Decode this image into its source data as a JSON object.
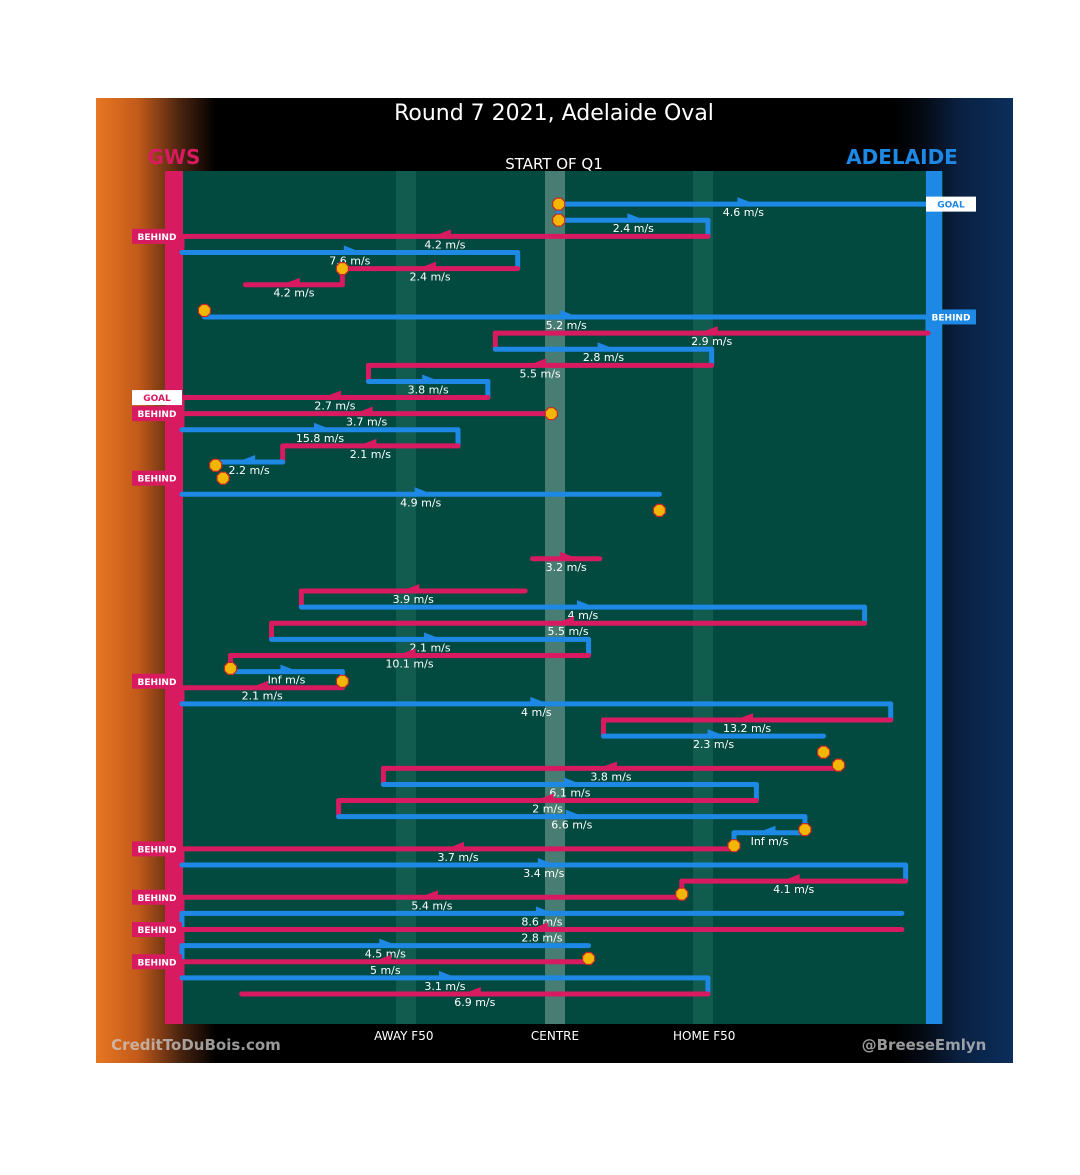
{
  "title": "Round 7 2021, Adelaide Oval",
  "subtitle": "START OF Q1",
  "teams": {
    "left": "GWS",
    "right": "ADELAIDE"
  },
  "colors": {
    "gws": "#d81b60",
    "adelaide": "#1e88e5",
    "field": "#02493f",
    "ball": "#f2b705",
    "white": "#ffffff"
  },
  "footer": {
    "left": "CreditToDuBois.com",
    "right": "@BreeseEmlyn"
  },
  "chart_data": {
    "type": "possession-chain",
    "title": "Round 7 2021, Adelaide Oval",
    "subtitle": "START OF Q1",
    "x_axis": {
      "range": [
        0,
        100
      ],
      "ticks": [
        {
          "pos": 30,
          "label": "AWAY F50"
        },
        {
          "pos": 50,
          "label": "CENTRE"
        },
        {
          "pos": 70,
          "label": "HOME F50"
        }
      ]
    },
    "y_axis": {
      "range": [
        0,
        50
      ]
    },
    "markers_order": [
      "left_wall",
      "right_wall"
    ],
    "segments": [
      {
        "team": "A",
        "y": 1.0,
        "x1": 50.5,
        "x2": 100,
        "speed": "4.6 m/s",
        "dir": 1
      },
      {
        "team": "A",
        "y": 2.0,
        "x1": 50.5,
        "x2": 70.5,
        "speed": "2.4 m/s",
        "dir": 1
      },
      {
        "team": "G",
        "y": 3.0,
        "x1": 0,
        "x2": 70.5,
        "speed": "4.2 m/s",
        "dir": -1
      },
      {
        "team": "A",
        "y": 4.0,
        "x1": 0,
        "x2": 45,
        "speed": "7.6 m/s",
        "dir": 1
      },
      {
        "team": "G",
        "y": 5.0,
        "x1": 21.5,
        "x2": 45,
        "speed": "2.4 m/s",
        "dir": -1
      },
      {
        "team": "G",
        "y": 6.0,
        "x1": 8.5,
        "x2": 21.5,
        "speed": "4.2 m/s",
        "dir": -1
      },
      {
        "team": "A",
        "y": 8.0,
        "x1": 3,
        "x2": 100,
        "speed": "5.2 m/s",
        "dir": 1
      },
      {
        "team": "G",
        "y": 9.0,
        "x1": 42,
        "x2": 100,
        "speed": "2.9 m/s",
        "dir": -1
      },
      {
        "team": "A",
        "y": 10.0,
        "x1": 42,
        "x2": 71,
        "speed": "2.8 m/s",
        "dir": 1
      },
      {
        "team": "G",
        "y": 11.0,
        "x1": 25,
        "x2": 71,
        "speed": "5.5 m/s",
        "dir": -1
      },
      {
        "team": "A",
        "y": 12.0,
        "x1": 25,
        "x2": 41,
        "speed": "3.8 m/s",
        "dir": 1
      },
      {
        "team": "G",
        "y": 13.0,
        "x1": 0,
        "x2": 41,
        "speed": "2.7 m/s",
        "dir": -1
      },
      {
        "team": "G",
        "y": 14.0,
        "x1": 0,
        "x2": 49.5,
        "speed": "3.7 m/s",
        "dir": -1
      },
      {
        "team": "A",
        "y": 15.0,
        "x1": 0,
        "x2": 37,
        "speed": "15.8 m/s",
        "dir": 1
      },
      {
        "team": "G",
        "y": 16.0,
        "x1": 13.5,
        "x2": 37,
        "speed": "2.1 m/s",
        "dir": -1
      },
      {
        "team": "A",
        "y": 17.0,
        "x1": 4.5,
        "x2": 13.5,
        "speed": "2.2 m/s",
        "dir": -1
      },
      {
        "team": "A",
        "y": 19.0,
        "x1": 0,
        "x2": 64,
        "speed": "4.9 m/s",
        "dir": 1
      },
      {
        "team": "G",
        "y": 23.0,
        "x1": 47,
        "x2": 56,
        "speed": "3.2 m/s",
        "dir": 1
      },
      {
        "team": "G",
        "y": 25.0,
        "x1": 16,
        "x2": 46,
        "speed": "3.9 m/s",
        "dir": -1
      },
      {
        "team": "A",
        "y": 26.0,
        "x1": 16,
        "x2": 91.5,
        "speed": "4 m/s",
        "dir": 1
      },
      {
        "team": "G",
        "y": 27.0,
        "x1": 12,
        "x2": 91.5,
        "speed": "5.5 m/s",
        "dir": -1
      },
      {
        "team": "A",
        "y": 28.0,
        "x1": 12,
        "x2": 54.5,
        "speed": "2.1 m/s",
        "dir": 1
      },
      {
        "team": "G",
        "y": 29.0,
        "x1": 6.5,
        "x2": 54.5,
        "speed": "10.1 m/s",
        "dir": -1
      },
      {
        "team": "A",
        "y": 30.0,
        "x1": 6.5,
        "x2": 21.5,
        "speed": "Inf m/s",
        "dir": 1
      },
      {
        "team": "G",
        "y": 31.0,
        "x1": 0,
        "x2": 21.5,
        "speed": "2.1 m/s",
        "dir": -1
      },
      {
        "team": "A",
        "y": 32.0,
        "x1": 0,
        "x2": 95,
        "speed": "4 m/s",
        "dir": 1
      },
      {
        "team": "G",
        "y": 33.0,
        "x1": 56.5,
        "x2": 95,
        "speed": "13.2 m/s",
        "dir": -1
      },
      {
        "team": "A",
        "y": 34.0,
        "x1": 56.5,
        "x2": 86,
        "speed": "2.3 m/s",
        "dir": 1
      },
      {
        "team": "G",
        "y": 36.0,
        "x1": 27,
        "x2": 88,
        "speed": "3.8 m/s",
        "dir": -1
      },
      {
        "team": "A",
        "y": 37.0,
        "x1": 27,
        "x2": 77,
        "speed": "6.1 m/s",
        "dir": 1
      },
      {
        "team": "G",
        "y": 38.0,
        "x1": 21,
        "x2": 77,
        "speed": "2 m/s",
        "dir": -1
      },
      {
        "team": "A",
        "y": 39.0,
        "x1": 21,
        "x2": 83.5,
        "speed": "6.6 m/s",
        "dir": 1
      },
      {
        "team": "A",
        "y": 40.0,
        "x1": 74,
        "x2": 83.5,
        "speed": "Inf m/s",
        "dir": -1
      },
      {
        "team": "G",
        "y": 41.0,
        "x1": 0,
        "x2": 74,
        "speed": "3.7 m/s",
        "dir": -1
      },
      {
        "team": "A",
        "y": 42.0,
        "x1": 0,
        "x2": 97,
        "speed": "3.4 m/s",
        "dir": 1
      },
      {
        "team": "G",
        "y": 43.0,
        "x1": 67,
        "x2": 97,
        "speed": "4.1 m/s",
        "dir": -1
      },
      {
        "team": "G",
        "y": 44.0,
        "x1": 0,
        "x2": 67,
        "speed": "5.4 m/s",
        "dir": -1
      },
      {
        "team": "A",
        "y": 45.0,
        "x1": 0,
        "x2": 96.5,
        "speed": "8.6 m/s",
        "dir": 1
      },
      {
        "team": "G",
        "y": 46.0,
        "x1": 0,
        "x2": 96.5,
        "speed": "2.8 m/s",
        "dir": -1
      },
      {
        "team": "A",
        "y": 47.0,
        "x1": 0,
        "x2": 54.5,
        "speed": "4.5 m/s",
        "dir": 1
      },
      {
        "team": "G",
        "y": 48.0,
        "x1": 0,
        "x2": 54.5,
        "speed": "5 m/s",
        "dir": -1
      },
      {
        "team": "A",
        "y": 49.0,
        "x1": 0,
        "x2": 70.5,
        "speed": "3.1 m/s",
        "dir": 1
      },
      {
        "team": "G",
        "y": 50.0,
        "x1": 8,
        "x2": 70.5,
        "speed": "6.9 m/s",
        "dir": -1
      }
    ],
    "outcomes": [
      {
        "team": "A",
        "y": 1.0,
        "label": "GOAL"
      },
      {
        "team": "G",
        "y": 3.0,
        "label": "BEHIND"
      },
      {
        "team": "A",
        "y": 8.0,
        "label": "BEHIND"
      },
      {
        "team": "G",
        "y": 13.0,
        "label": "GOAL"
      },
      {
        "team": "G",
        "y": 14.0,
        "label": "BEHIND"
      },
      {
        "team": "G",
        "y": 18.0,
        "label": "BEHIND"
      },
      {
        "team": "G",
        "y": 30.6,
        "label": "BEHIND"
      },
      {
        "team": "G",
        "y": 41.0,
        "label": "BEHIND"
      },
      {
        "team": "G",
        "y": 44.0,
        "label": "BEHIND"
      },
      {
        "team": "G",
        "y": 46.0,
        "label": "BEHIND"
      },
      {
        "team": "G",
        "y": 48.0,
        "label": "BEHIND"
      }
    ],
    "stoppages": [
      {
        "x": 50.5,
        "y": 1.0
      },
      {
        "x": 50.5,
        "y": 2.0
      },
      {
        "x": 21.5,
        "y": 5.0
      },
      {
        "x": 3,
        "y": 7.6
      },
      {
        "x": 49.5,
        "y": 14.0
      },
      {
        "x": 4.5,
        "y": 17.2
      },
      {
        "x": 5.5,
        "y": 18.0
      },
      {
        "x": 64,
        "y": 20.0
      },
      {
        "x": 6.5,
        "y": 29.8
      },
      {
        "x": 21.5,
        "y": 30.6
      },
      {
        "x": 86,
        "y": 35.0
      },
      {
        "x": 88,
        "y": 35.8
      },
      {
        "x": 83.5,
        "y": 39.8
      },
      {
        "x": 74,
        "y": 40.8
      },
      {
        "x": 67,
        "y": 43.8
      },
      {
        "x": 54.5,
        "y": 47.8
      }
    ]
  }
}
